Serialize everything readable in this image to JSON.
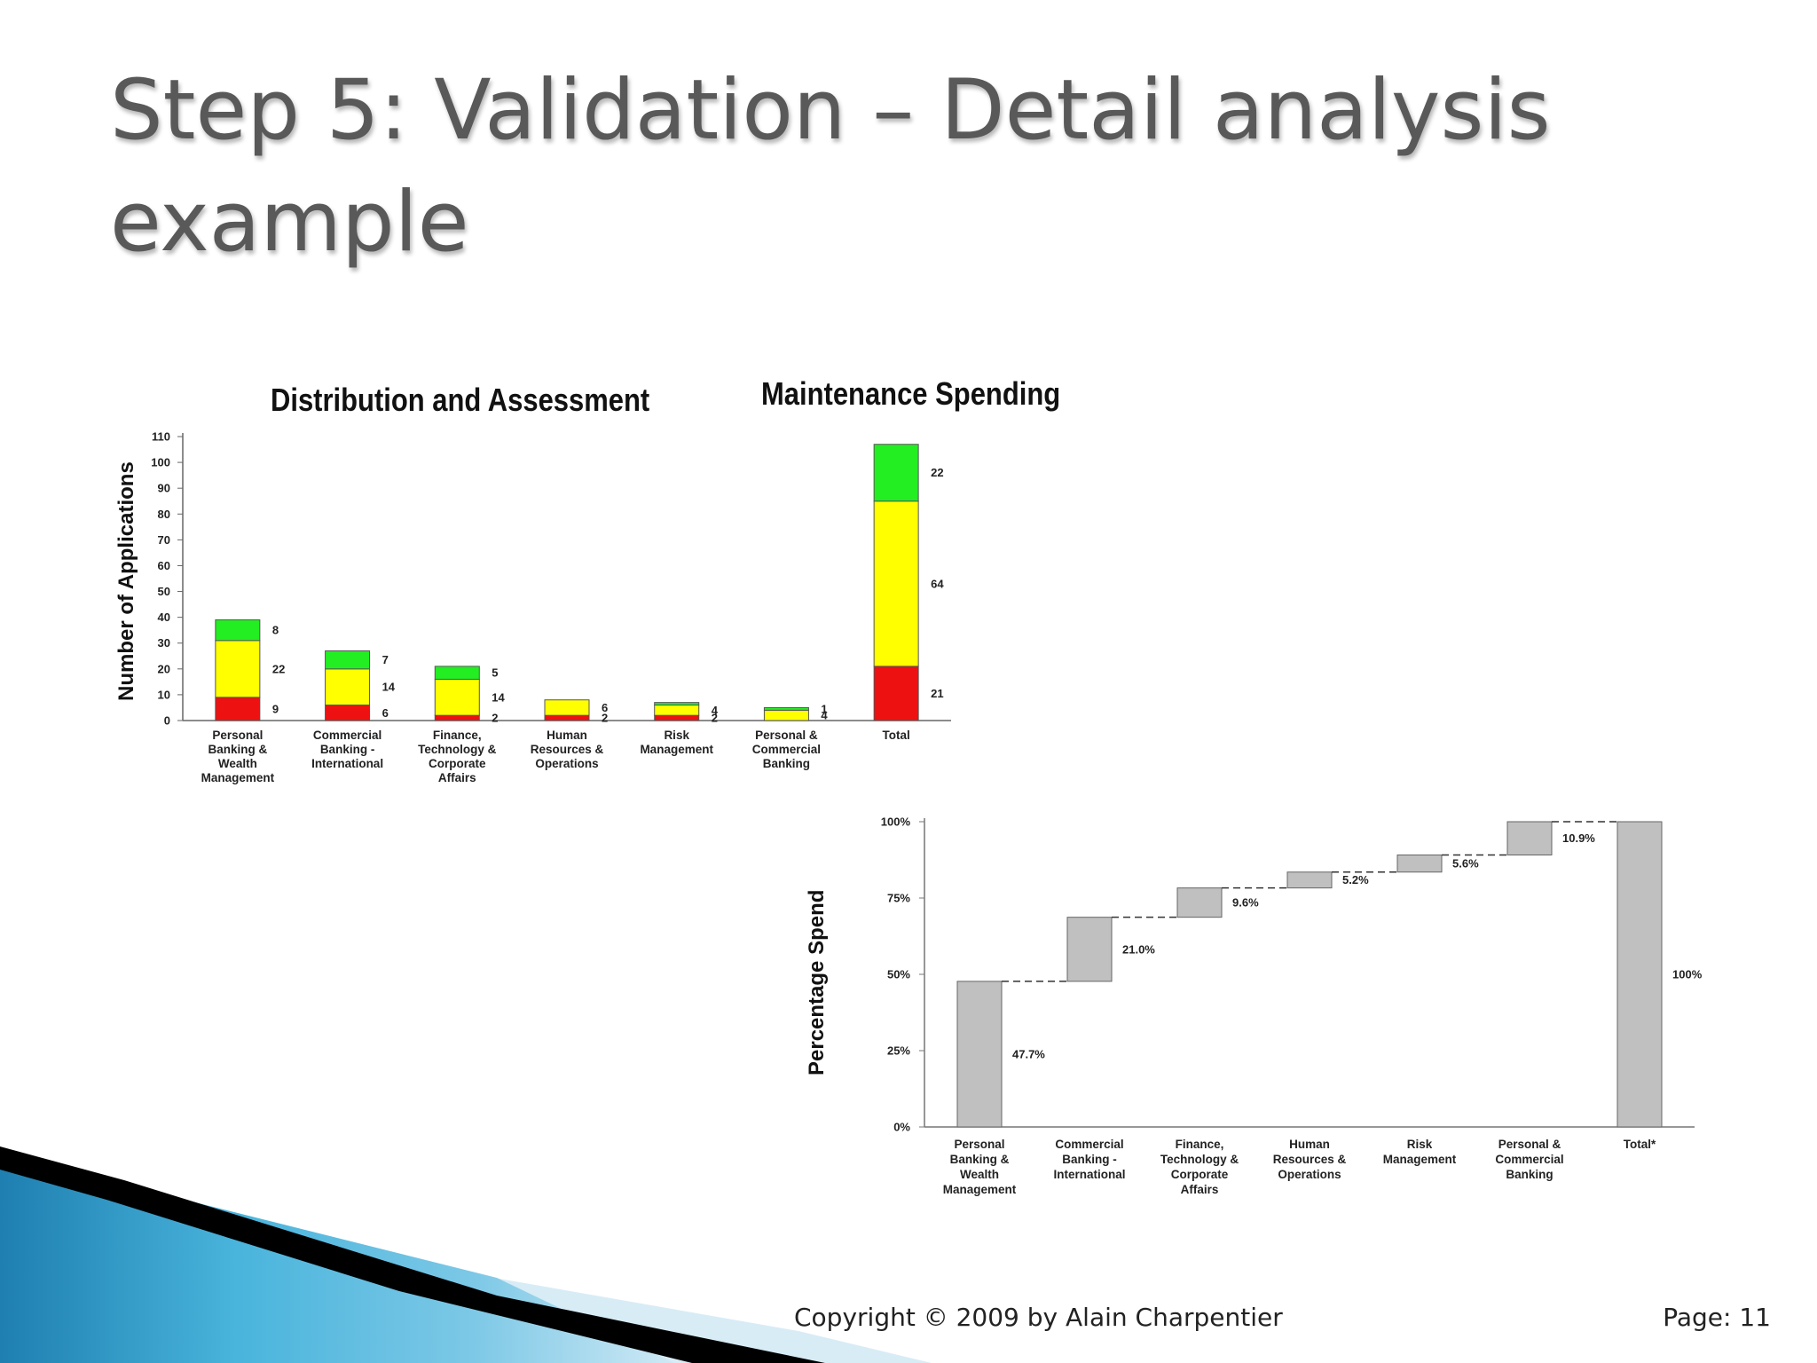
{
  "slide": {
    "title": "Step 5: Validation – Detail analysis example",
    "footer_copyright": "Copyright © 2009 by Alain Charpentier",
    "footer_page": "Page: 11"
  },
  "colors": {
    "red": "#ee1111",
    "yellow": "#ffff00",
    "green": "#22ee22",
    "waterfall_bar": "#c0c0c0",
    "title_text": "#595959",
    "decor_blue": "#2a9fcf",
    "decor_black": "#000000"
  },
  "chart_data": [
    {
      "type": "bar",
      "stacked": true,
      "title": "Distribution and Assessment",
      "ylabel": "Number of Applications",
      "ylim": [
        0,
        110
      ],
      "yticks": [
        0,
        10,
        20,
        30,
        40,
        50,
        60,
        70,
        80,
        90,
        100,
        110
      ],
      "categories": [
        "Personal Banking & Wealth Management",
        "Commercial Banking - International",
        "Finance, Technology & Corporate Affairs",
        "Human Resources & Operations",
        "Risk Management",
        "Personal & Commercial Banking",
        "Total"
      ],
      "category_lines": [
        [
          "Personal",
          "Banking &",
          "Wealth",
          "Management"
        ],
        [
          "Commercial",
          "Banking -",
          "International"
        ],
        [
          "Finance,",
          "Technology &",
          "Corporate",
          "Affairs"
        ],
        [
          "Human",
          "Resources &",
          "Operations"
        ],
        [
          "Risk",
          "Management"
        ],
        [
          "Personal &",
          "Commercial",
          "Banking"
        ],
        [
          "Total"
        ]
      ],
      "series": [
        {
          "color": "red",
          "values": [
            9,
            6,
            2,
            2,
            2,
            0,
            21
          ]
        },
        {
          "color": "yellow",
          "values": [
            22,
            14,
            14,
            6,
            4,
            4,
            64
          ]
        },
        {
          "color": "green",
          "values": [
            8,
            7,
            5,
            0,
            1,
            1,
            22
          ]
        }
      ],
      "data_labels": [
        [
          "9",
          "22",
          "8"
        ],
        [
          "6",
          "14",
          "7"
        ],
        [
          "2",
          "14",
          "5"
        ],
        [
          "2",
          "6",
          ""
        ],
        [
          "2",
          "4",
          ""
        ],
        [
          "",
          "4",
          "1"
        ],
        [
          "21",
          "64",
          "22"
        ]
      ],
      "grid": false,
      "legend": "none"
    },
    {
      "type": "bar",
      "subtype": "waterfall",
      "title": "Maintenance Spending",
      "ylabel": "Percentage Spend",
      "ylim": [
        0,
        100
      ],
      "yticks": [
        "0%",
        "25%",
        "50%",
        "75%",
        "100%"
      ],
      "categories": [
        "Personal Banking & Wealth Management",
        "Commercial Banking - International",
        "Finance, Technology & Corporate Affairs",
        "Human Resources & Operations",
        "Risk Management",
        "Personal & Commercial Banking",
        "Total*"
      ],
      "category_lines": [
        [
          "Personal",
          "Banking &",
          "Wealth",
          "Management"
        ],
        [
          "Commercial",
          "Banking -",
          "International"
        ],
        [
          "Finance,",
          "Technology &",
          "Corporate",
          "Affairs"
        ],
        [
          "Human",
          "Resources &",
          "Operations"
        ],
        [
          "Risk",
          "Management"
        ],
        [
          "Personal &",
          "Commercial",
          "Banking"
        ],
        [
          "Total*"
        ]
      ],
      "values": [
        47.7,
        21.0,
        9.6,
        5.2,
        5.6,
        10.9,
        100
      ],
      "labels": [
        "47.7%",
        "21.0%",
        "9.6%",
        "5.2%",
        "5.6%",
        "10.9%",
        "100%"
      ],
      "grid": false,
      "legend": "none"
    }
  ]
}
